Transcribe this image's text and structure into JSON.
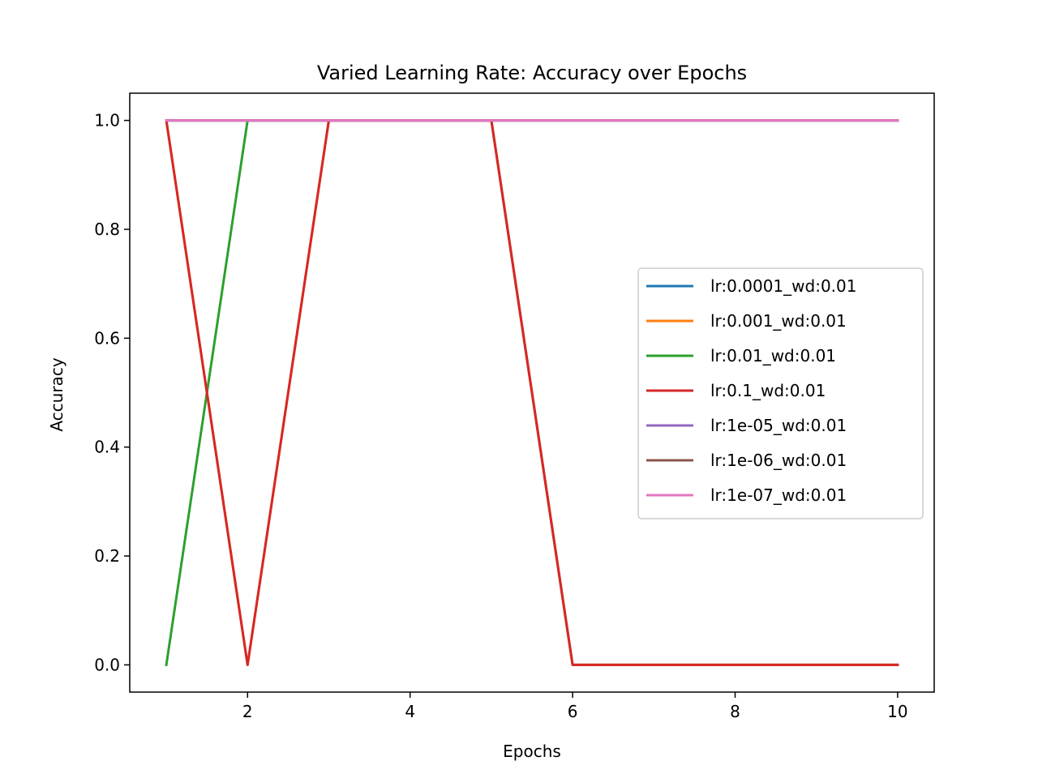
{
  "chart_data": {
    "type": "line",
    "title": "Varied Learning Rate: Accuracy over Epochs",
    "xlabel": "Epochs",
    "ylabel": "Accuracy",
    "xlim": [
      0.55,
      10.45
    ],
    "ylim": [
      -0.05,
      1.05
    ],
    "xticks": [
      2,
      4,
      6,
      8,
      10
    ],
    "yticks": [
      0.0,
      0.2,
      0.4,
      0.6,
      0.8,
      1.0
    ],
    "grid": false,
    "legend_position": "center-right",
    "x": [
      1,
      2,
      3,
      4,
      5,
      6,
      7,
      8,
      9,
      10
    ],
    "series": [
      {
        "name": "lr:0.0001_wd:0.01",
        "color": "#1f77b4",
        "values": [
          1,
          1,
          1,
          1,
          1,
          0,
          0,
          0,
          0,
          0
        ]
      },
      {
        "name": "lr:0.001_wd:0.01",
        "color": "#ff7f0e",
        "values": [
          1,
          0,
          1,
          1,
          1,
          0,
          0,
          0,
          0,
          0
        ]
      },
      {
        "name": "lr:0.01_wd:0.01",
        "color": "#2ca02c",
        "values": [
          0,
          1,
          1,
          1,
          1,
          1,
          1,
          1,
          1,
          1
        ]
      },
      {
        "name": "lr:0.1_wd:0.01",
        "color": "#d62728",
        "values": [
          1,
          0,
          1,
          1,
          1,
          0,
          0,
          0,
          0,
          0
        ]
      },
      {
        "name": "lr:1e-05_wd:0.01",
        "color": "#9467bd",
        "values": [
          1,
          1,
          1,
          1,
          1,
          1,
          1,
          1,
          1,
          1
        ]
      },
      {
        "name": "lr:1e-06_wd:0.01",
        "color": "#8c564b",
        "values": [
          1,
          1,
          1,
          1,
          1,
          1,
          1,
          1,
          1,
          1
        ]
      },
      {
        "name": "lr:1e-07_wd:0.01",
        "color": "#e377c2",
        "values": [
          1,
          1,
          1,
          1,
          1,
          1,
          1,
          1,
          1,
          1
        ]
      }
    ]
  }
}
